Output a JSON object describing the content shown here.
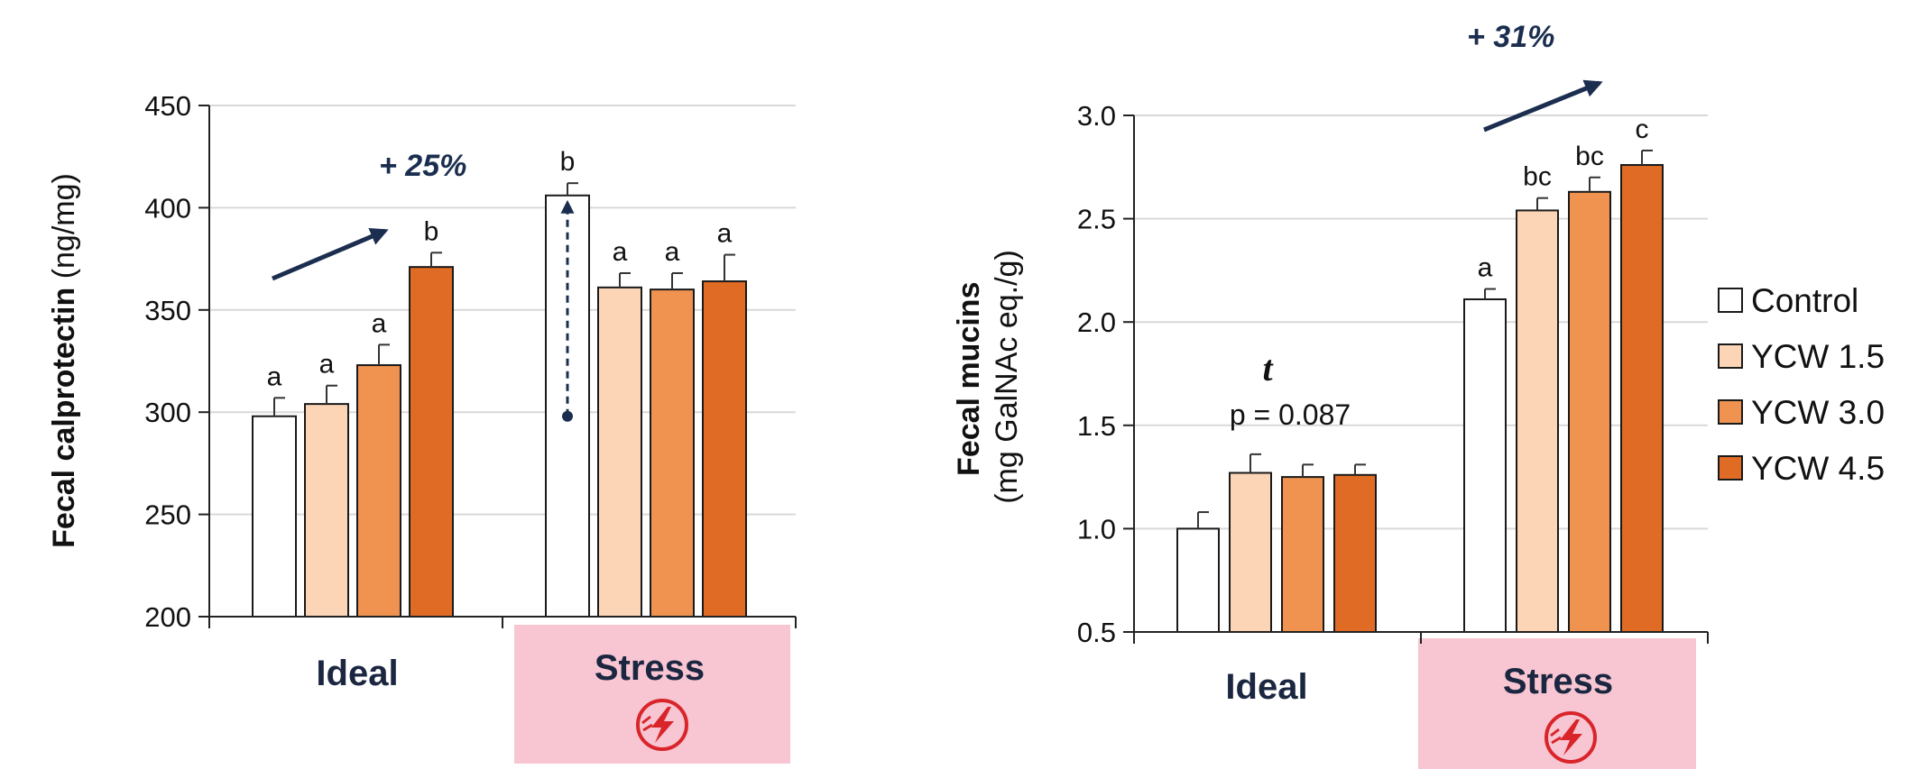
{
  "colors": {
    "Control": "#ffffff",
    "YCW 1.5": "#fbd5b5",
    "YCW 3.0": "#f09351",
    "YCW 4.5": "#e06b24",
    "stress_bg": "#f7c6d2",
    "arrow": "#1b2e4f",
    "bolt": "#d9252a"
  },
  "legend": [
    "Control",
    "YCW 1.5",
    "YCW 3.0",
    "YCW 4.5"
  ],
  "icons": {
    "stress": "lightning-bolt-icon"
  },
  "chart_data": [
    {
      "type": "bar",
      "title": "",
      "xlabel": "",
      "ylabel_bold": "Fecal calprotectin",
      "ylabel_rest": " (ng/mg)",
      "ylim": [
        200,
        450
      ],
      "yticks": [
        200,
        250,
        300,
        350,
        400,
        450
      ],
      "tick_labels": [
        "200",
        "250",
        "300",
        "350",
        "400",
        "450"
      ],
      "categories": [
        "Ideal",
        "Stress"
      ],
      "series": [
        {
          "name": "Control",
          "values": [
            298,
            406
          ],
          "errors": [
            9,
            6
          ],
          "letters": [
            "a",
            "b"
          ]
        },
        {
          "name": "YCW 1.5",
          "values": [
            304,
            361
          ],
          "errors": [
            9,
            7
          ],
          "letters": [
            "a",
            "a"
          ]
        },
        {
          "name": "YCW 3.0",
          "values": [
            323,
            360
          ],
          "errors": [
            10,
            8
          ],
          "letters": [
            "a",
            "a"
          ]
        },
        {
          "name": "YCW 4.5",
          "values": [
            371,
            364
          ],
          "errors": [
            7,
            13
          ],
          "letters": [
            "b",
            "a"
          ]
        }
      ],
      "annotation": "+ 25%",
      "dashed_arrow": {
        "from": 298,
        "to": 406
      }
    },
    {
      "type": "bar",
      "title": "",
      "xlabel": "",
      "ylabel_bold": "Fecal mucins",
      "ylabel_rest": "(mg GalNAc eq./g)",
      "ylim": [
        0.5,
        3.0
      ],
      "yticks": [
        0.5,
        1.0,
        1.5,
        2.0,
        2.5,
        3.0
      ],
      "tick_labels": [
        "0.5",
        "1.0",
        "1.5",
        "2.0",
        "2.5",
        "3.0"
      ],
      "categories": [
        "Ideal",
        "Stress"
      ],
      "series": [
        {
          "name": "Control",
          "values": [
            1.0,
            2.11
          ],
          "errors": [
            0.08,
            0.05
          ],
          "letters": [
            "",
            "a"
          ]
        },
        {
          "name": "YCW 1.5",
          "values": [
            1.27,
            2.54
          ],
          "errors": [
            0.09,
            0.06
          ],
          "letters": [
            "",
            "bc"
          ]
        },
        {
          "name": "YCW 3.0",
          "values": [
            1.25,
            2.63
          ],
          "errors": [
            0.06,
            0.07
          ],
          "letters": [
            "",
            "bc"
          ]
        },
        {
          "name": "YCW 4.5",
          "values": [
            1.26,
            2.76
          ],
          "errors": [
            0.05,
            0.07
          ],
          "letters": [
            "",
            "c"
          ]
        }
      ],
      "annotation": "+ 31%",
      "trend_label": "t",
      "p_value": "p = 0.087"
    }
  ]
}
